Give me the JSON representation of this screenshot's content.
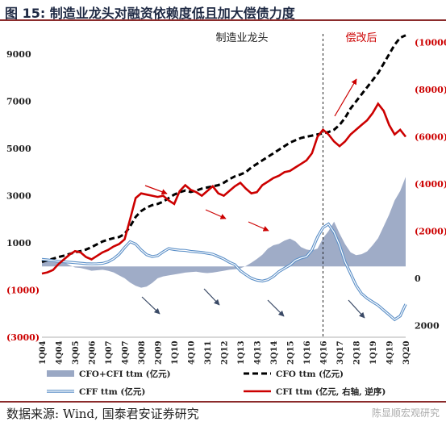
{
  "figure": {
    "title": "图 15:  制造业龙头对融资依赖度低且加大偿债力度",
    "source": "数据来源:  Wind, 国泰君安证券研究",
    "watermark": "陈显顺宏观研究"
  },
  "chart_data": {
    "type": "line",
    "annotations": {
      "left_region": "制造业龙头",
      "right_region": "偿改后"
    },
    "x": [
      "1Q04",
      "2Q04",
      "3Q04",
      "4Q04",
      "1Q05",
      "2Q05",
      "3Q05",
      "4Q05",
      "1Q06",
      "2Q06",
      "3Q06",
      "4Q06",
      "1Q07",
      "2Q07",
      "3Q07",
      "4Q07",
      "1Q08",
      "2Q08",
      "3Q08",
      "4Q08",
      "1Q09",
      "2Q09",
      "3Q09",
      "4Q09",
      "1Q10",
      "2Q10",
      "3Q10",
      "4Q10",
      "1Q11",
      "2Q11",
      "3Q11",
      "4Q11",
      "1Q12",
      "2Q12",
      "3Q12",
      "4Q12",
      "1Q13",
      "2Q13",
      "3Q13",
      "4Q13",
      "1Q14",
      "2Q14",
      "3Q14",
      "4Q14",
      "1Q15",
      "2Q15",
      "3Q15",
      "4Q15",
      "1Q16",
      "2Q16",
      "3Q16",
      "4Q16",
      "1Q17",
      "2Q17",
      "3Q17",
      "4Q17",
      "1Q18",
      "2Q18",
      "3Q18",
      "4Q18",
      "1Q19",
      "2Q19",
      "3Q19",
      "4Q19",
      "1Q20",
      "2Q20",
      "3Q20"
    ],
    "x_tick_labels": [
      "1Q04",
      "4Q04",
      "3Q05",
      "2Q06",
      "1Q07",
      "4Q07",
      "3Q08",
      "2Q09",
      "1Q10",
      "4Q10",
      "3Q11",
      "2Q12",
      "1Q13",
      "4Q13",
      "3Q14",
      "2Q15",
      "1Q16",
      "4Q16",
      "3Q17",
      "2Q18",
      "1Q19",
      "4Q19",
      "3Q20"
    ],
    "y_left": {
      "ticks": [
        "(3000)",
        "(1000)",
        "1000",
        "3000",
        "5000",
        "7000",
        "9000"
      ],
      "ylim": [
        -3000,
        10000
      ]
    },
    "y_right": {
      "ticks": [
        "(10000)",
        "(8000)",
        "(6000)",
        "(4000)",
        "(2000)",
        "0",
        "2000"
      ],
      "reversed": true,
      "ylim": [
        -10500,
        2500
      ]
    },
    "series": [
      {
        "name": "CFO+CFI ttm (亿元)",
        "axis": "left",
        "style": "area",
        "color": "#9aa8c4",
        "values": [
          220,
          280,
          300,
          260,
          180,
          60,
          -40,
          -60,
          -120,
          -180,
          -160,
          -140,
          -180,
          -250,
          -380,
          -500,
          -680,
          -820,
          -900,
          -850,
          -700,
          -500,
          -420,
          -380,
          -340,
          -300,
          -260,
          -240,
          -220,
          -260,
          -280,
          -260,
          -220,
          -180,
          -140,
          -120,
          -80,
          20,
          160,
          320,
          500,
          760,
          900,
          960,
          1100,
          1180,
          1060,
          820,
          720,
          680,
          760,
          1200,
          1500,
          1900,
          1400,
          950,
          600,
          480,
          520,
          640,
          900,
          1200,
          1700,
          2200,
          2800,
          3200,
          3800
        ]
      },
      {
        "name": "CFO ttm (亿元)",
        "axis": "left",
        "style": "dashed",
        "color": "#000000",
        "values": [
          200,
          260,
          330,
          400,
          460,
          530,
          600,
          650,
          720,
          820,
          940,
          1060,
          1140,
          1200,
          1250,
          1380,
          1700,
          2100,
          2350,
          2500,
          2600,
          2650,
          2750,
          2900,
          3050,
          3150,
          3220,
          3160,
          3220,
          3300,
          3350,
          3400,
          3450,
          3550,
          3700,
          3820,
          3900,
          4000,
          4200,
          4350,
          4500,
          4650,
          4800,
          4950,
          5100,
          5250,
          5350,
          5450,
          5500,
          5550,
          5600,
          5650,
          5700,
          5800,
          6000,
          6300,
          6700,
          7000,
          7300,
          7600,
          7900,
          8200,
          8600,
          9000,
          9400,
          9700,
          9800
        ]
      },
      {
        "name": "CFF ttm (亿元)",
        "axis": "left",
        "style": "line-double",
        "color": "#5b8fc7",
        "values": [
          300,
          280,
          250,
          220,
          200,
          180,
          160,
          140,
          120,
          110,
          115,
          130,
          200,
          330,
          520,
          800,
          1050,
          950,
          700,
          500,
          420,
          460,
          620,
          760,
          720,
          690,
          680,
          640,
          620,
          600,
          560,
          520,
          420,
          320,
          180,
          80,
          -180,
          -350,
          -500,
          -580,
          -620,
          -560,
          -420,
          -220,
          -80,
          60,
          260,
          360,
          420,
          700,
          1250,
          1650,
          1800,
          1450,
          900,
          200,
          -300,
          -800,
          -1150,
          -1350,
          -1500,
          -1650,
          -1850,
          -2050,
          -2250,
          -2100,
          -1600
        ]
      },
      {
        "name": "CFI ttm (亿元, 右轴, 逆序)",
        "axis": "right",
        "style": "line",
        "color": "#cc0000",
        "values": [
          -200,
          -250,
          -350,
          -600,
          -800,
          -1000,
          -1150,
          -1100,
          -900,
          -800,
          -950,
          -1100,
          -1200,
          -1350,
          -1450,
          -1650,
          -2500,
          -3400,
          -3600,
          -3550,
          -3500,
          -3450,
          -3500,
          -3300,
          -3150,
          -3700,
          -3950,
          -3750,
          -3650,
          -3500,
          -3700,
          -3900,
          -3600,
          -3500,
          -3700,
          -3900,
          -4050,
          -3800,
          -3600,
          -3650,
          -3950,
          -4100,
          -4250,
          -4350,
          -4500,
          -4550,
          -4700,
          -4850,
          -5000,
          -5300,
          -6000,
          -6300,
          -6100,
          -5800,
          -5600,
          -5800,
          -6100,
          -6300,
          -6500,
          -6700,
          -7000,
          -7400,
          -7100,
          -6500,
          -6100,
          -6300,
          -6000
        ]
      }
    ],
    "legend": {
      "placement": "bottom"
    },
    "grid": false
  }
}
